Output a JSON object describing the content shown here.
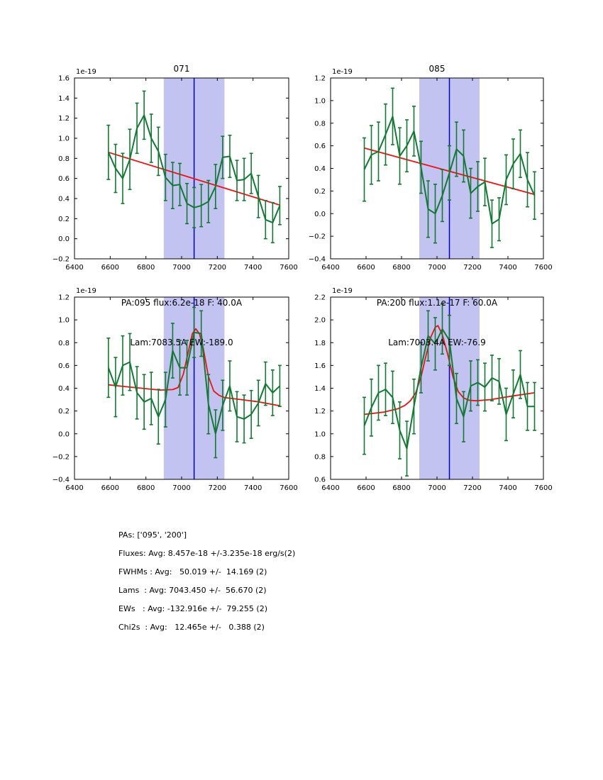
{
  "figure": {
    "background": "#ffffff"
  },
  "colors": {
    "data_line": "#117a32",
    "fit_line": "#ee1111",
    "center_line": "#0000cc",
    "band": "#c3c3f1",
    "axes": "#000000"
  },
  "summary": {
    "lines": [
      "PAs: ['095', '200']",
      "Fluxes: Avg: 8.457e-18 +/-3.235e-18 erg/s(2)",
      "FWHMs : Avg:   50.019 +/-  14.169 (2)",
      "Lams  : Avg: 7043.450 +/-  56.670 (2)",
      "EWs   : Avg: -132.916e +/-  79.255 (2)",
      "Chi2s  : Avg:   12.465e +/-   0.388 (2)"
    ]
  },
  "chart_data": [
    {
      "id": "spectrum-pa095",
      "type": "line",
      "title": "071",
      "offset_text": "1e-19",
      "xlabel_lines": [
        "PA:095 flux:6.2e-18 F: 40.0A",
        "Lam:7083.5A EW:-189.0"
      ],
      "xlim": [
        6400,
        7600
      ],
      "ylim": [
        -0.2,
        1.6
      ],
      "xticks": [
        6400,
        6600,
        6800,
        7000,
        7200,
        7400,
        7600
      ],
      "yticks": [
        -0.2,
        0.0,
        0.2,
        0.4,
        0.6,
        0.8,
        1.0,
        1.2,
        1.4,
        1.6
      ],
      "band": [
        6900,
        7240
      ],
      "vline": 7070,
      "x": [
        6590,
        6630,
        6670,
        6710,
        6750,
        6790,
        6830,
        6870,
        6910,
        6950,
        6990,
        7030,
        7070,
        7110,
        7150,
        7190,
        7230,
        7270,
        7310,
        7350,
        7390,
        7430,
        7470,
        7510,
        7550
      ],
      "y": [
        0.86,
        0.7,
        0.6,
        0.79,
        1.1,
        1.23,
        1.0,
        0.87,
        0.61,
        0.53,
        0.54,
        0.35,
        0.31,
        0.33,
        0.37,
        0.52,
        0.81,
        0.82,
        0.58,
        0.59,
        0.65,
        0.42,
        0.19,
        0.16,
        0.33
      ],
      "yerr": [
        0.27,
        0.24,
        0.25,
        0.3,
        0.25,
        0.24,
        0.24,
        0.24,
        0.23,
        0.23,
        0.21,
        0.2,
        0.2,
        0.21,
        0.21,
        0.22,
        0.21,
        0.21,
        0.2,
        0.21,
        0.2,
        0.21,
        0.19,
        0.2,
        0.19
      ],
      "fit": {
        "x": [
          6590,
          7550
        ],
        "y": [
          0.86,
          0.335
        ]
      }
    },
    {
      "id": "spectrum-pa200",
      "type": "line",
      "title": "085",
      "offset_text": "1e-19",
      "xlabel_lines": [
        "PA:200 flux:1.1e-17 F: 60.0A",
        "Lam:7003.4A EW:-76.9"
      ],
      "xlim": [
        6400,
        7600
      ],
      "ylim": [
        -0.4,
        1.2
      ],
      "xticks": [
        6400,
        6600,
        6800,
        7000,
        7200,
        7400,
        7600
      ],
      "yticks": [
        -0.4,
        -0.2,
        0.0,
        0.2,
        0.4,
        0.6,
        0.8,
        1.0,
        1.2
      ],
      "band": [
        6900,
        7240
      ],
      "vline": 7070,
      "x": [
        6590,
        6630,
        6670,
        6710,
        6750,
        6790,
        6830,
        6870,
        6910,
        6950,
        6990,
        7030,
        7070,
        7110,
        7150,
        7190,
        7230,
        7270,
        7310,
        7350,
        7390,
        7430,
        7470,
        7510,
        7550
      ],
      "y": [
        0.39,
        0.52,
        0.55,
        0.7,
        0.86,
        0.51,
        0.6,
        0.73,
        0.41,
        0.04,
        0.0,
        0.16,
        0.36,
        0.57,
        0.51,
        0.18,
        0.24,
        0.28,
        -0.09,
        -0.05,
        0.3,
        0.44,
        0.53,
        0.3,
        0.16
      ],
      "yerr": [
        0.28,
        0.26,
        0.26,
        0.27,
        0.25,
        0.25,
        0.23,
        0.22,
        0.23,
        0.25,
        0.26,
        0.23,
        0.24,
        0.24,
        0.23,
        0.22,
        0.22,
        0.21,
        0.21,
        0.19,
        0.22,
        0.22,
        0.21,
        0.24,
        0.21
      ],
      "fit": {
        "x": [
          6590,
          7550
        ],
        "y": [
          0.58,
          0.17
        ]
      }
    },
    {
      "id": "gaussfit-pa095",
      "type": "line",
      "title": "",
      "offset_text": "1e-19",
      "xlabel_lines": [],
      "xlim": [
        6400,
        7600
      ],
      "ylim": [
        -0.4,
        1.2
      ],
      "xticks": [
        6400,
        6600,
        6800,
        7000,
        7200,
        7400,
        7600
      ],
      "yticks": [
        -0.4,
        -0.2,
        0.0,
        0.2,
        0.4,
        0.6,
        0.8,
        1.0,
        1.2
      ],
      "band": [
        6900,
        7240
      ],
      "vline": 7070,
      "x": [
        6590,
        6630,
        6670,
        6710,
        6750,
        6790,
        6830,
        6870,
        6910,
        6950,
        6990,
        7030,
        7070,
        7110,
        7150,
        7190,
        7230,
        7270,
        7310,
        7350,
        7390,
        7430,
        7470,
        7510,
        7550
      ],
      "y": [
        0.58,
        0.41,
        0.6,
        0.63,
        0.36,
        0.28,
        0.31,
        0.15,
        0.3,
        0.73,
        0.58,
        0.58,
        0.89,
        0.88,
        0.26,
        0.0,
        0.25,
        0.42,
        0.15,
        0.13,
        0.17,
        0.27,
        0.44,
        0.36,
        0.42
      ],
      "yerr": [
        0.26,
        0.26,
        0.26,
        0.25,
        0.23,
        0.24,
        0.23,
        0.24,
        0.24,
        0.24,
        0.24,
        0.24,
        0.22,
        0.2,
        0.26,
        0.21,
        0.22,
        0.22,
        0.22,
        0.21,
        0.21,
        0.2,
        0.19,
        0.2,
        0.18
      ],
      "fit": {
        "x": [
          6590,
          6700,
          6800,
          6880,
          6950,
          6980,
          7010,
          7040,
          7060,
          7080,
          7100,
          7120,
          7150,
          7180,
          7210,
          7240,
          7320,
          7420,
          7550
        ],
        "y": [
          0.43,
          0.412,
          0.396,
          0.384,
          0.388,
          0.406,
          0.525,
          0.738,
          0.878,
          0.922,
          0.876,
          0.76,
          0.503,
          0.375,
          0.337,
          0.318,
          0.303,
          0.283,
          0.246
        ]
      }
    },
    {
      "id": "gaussfit-pa200",
      "type": "line",
      "title": "",
      "offset_text": "1e-19",
      "xlabel_lines": [],
      "xlim": [
        6400,
        7600
      ],
      "ylim": [
        0.6,
        2.2
      ],
      "xticks": [
        6400,
        6600,
        6800,
        7000,
        7200,
        7400,
        7600
      ],
      "yticks": [
        0.6,
        0.8,
        1.0,
        1.2,
        1.4,
        1.6,
        1.8,
        2.0,
        2.2
      ],
      "band": [
        6900,
        7240
      ],
      "vline": 7070,
      "x": [
        6590,
        6630,
        6670,
        6710,
        6750,
        6790,
        6830,
        6870,
        6910,
        6950,
        6990,
        7030,
        7070,
        7110,
        7150,
        7190,
        7230,
        7270,
        7310,
        7350,
        7390,
        7430,
        7470,
        7510,
        7550
      ],
      "y": [
        1.07,
        1.23,
        1.36,
        1.39,
        1.32,
        1.03,
        0.87,
        1.24,
        1.58,
        1.86,
        1.79,
        1.92,
        1.82,
        1.31,
        1.15,
        1.42,
        1.45,
        1.41,
        1.49,
        1.46,
        1.17,
        1.35,
        1.52,
        1.24,
        1.24
      ],
      "yerr": [
        0.25,
        0.25,
        0.24,
        0.23,
        0.23,
        0.25,
        0.24,
        0.24,
        0.22,
        0.22,
        0.23,
        0.22,
        0.22,
        0.22,
        0.22,
        0.22,
        0.2,
        0.21,
        0.2,
        0.2,
        0.23,
        0.21,
        0.21,
        0.21,
        0.21
      ],
      "fit": {
        "x": [
          6590,
          6700,
          6780,
          6820,
          6850,
          6880,
          6910,
          6940,
          6965,
          6990,
          7005,
          7030,
          7060,
          7090,
          7120,
          7150,
          7180,
          7220,
          7300,
          7420,
          7550
        ],
        "y": [
          1.17,
          1.19,
          1.22,
          1.25,
          1.29,
          1.36,
          1.5,
          1.7,
          1.85,
          1.935,
          1.95,
          1.87,
          1.7,
          1.5,
          1.37,
          1.315,
          1.295,
          1.29,
          1.3,
          1.33,
          1.36
        ]
      }
    }
  ]
}
